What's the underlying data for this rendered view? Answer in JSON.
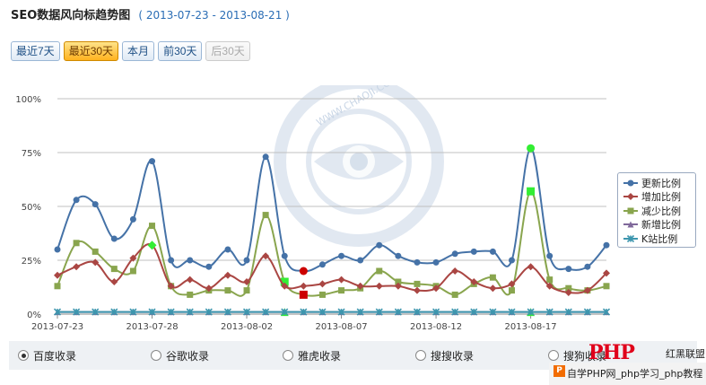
{
  "header": {
    "title": "SEO数据风向标趋势图",
    "date_range": "( 2013-07-23 - 2013-08-21 )"
  },
  "buttons": [
    {
      "label": "最近7天",
      "state": "normal"
    },
    {
      "label": "最近30天",
      "state": "active"
    },
    {
      "label": "本月",
      "state": "normal"
    },
    {
      "label": "前30天",
      "state": "normal"
    },
    {
      "label": "后30天",
      "state": "disabled"
    }
  ],
  "chart_data": {
    "type": "line",
    "ylim": [
      0,
      100
    ],
    "yticks": [
      0,
      25,
      50,
      75,
      100
    ],
    "ytick_labels": [
      "0%",
      "25%",
      "50%",
      "75%",
      "100%"
    ],
    "x": [
      "2013-07-23",
      "2013-07-24",
      "2013-07-25",
      "2013-07-26",
      "2013-07-27",
      "2013-07-28",
      "2013-07-29",
      "2013-07-30",
      "2013-07-31",
      "2013-08-01",
      "2013-08-02",
      "2013-08-03",
      "2013-08-04",
      "2013-08-05",
      "2013-08-06",
      "2013-08-07",
      "2013-08-08",
      "2013-08-09",
      "2013-08-10",
      "2013-08-11",
      "2013-08-12",
      "2013-08-13",
      "2013-08-14",
      "2013-08-15",
      "2013-08-16",
      "2013-08-17",
      "2013-08-18",
      "2013-08-19",
      "2013-08-20",
      "2013-08-21"
    ],
    "xtick_labels": [
      "2013-07-23",
      "2013-07-28",
      "2013-08-02",
      "2013-08-07",
      "2013-08-12",
      "2013-08-17"
    ],
    "grid": true,
    "legend_position": "right",
    "series": [
      {
        "name": "更新比例",
        "color": "#4572a7",
        "marker": "circle",
        "values": [
          30,
          53,
          51,
          35,
          44,
          71,
          25,
          25,
          22,
          30,
          25,
          73,
          27,
          20,
          23,
          27,
          25,
          32,
          27,
          24,
          24,
          28,
          29,
          29,
          25,
          77,
          27,
          21,
          22,
          32
        ]
      },
      {
        "name": "增加比例",
        "color": "#aa4643",
        "marker": "diamond",
        "values": [
          18,
          22,
          24,
          15,
          26,
          32,
          13,
          16,
          12,
          18,
          15,
          27,
          13,
          13,
          14,
          16,
          13,
          13,
          13,
          11,
          12,
          20,
          15,
          12,
          14,
          22,
          13,
          10,
          11,
          19
        ]
      },
      {
        "name": "减少比例",
        "color": "#89a54e",
        "marker": "square",
        "values": [
          13,
          33,
          29,
          21,
          20,
          41,
          13,
          9,
          11,
          11,
          11,
          46,
          15,
          9,
          9,
          11,
          12,
          20,
          15,
          14,
          13,
          9,
          14,
          17,
          11,
          57,
          16,
          12,
          11,
          13
        ]
      },
      {
        "name": "新增比例",
        "color": "#80699b",
        "marker": "triangle",
        "values": [
          1,
          1,
          1,
          1,
          1,
          1,
          1,
          1,
          1,
          1,
          1,
          1,
          1,
          1,
          1,
          1,
          1,
          1,
          1,
          1,
          1,
          1,
          1,
          1,
          1,
          1,
          1,
          1,
          1,
          1
        ]
      },
      {
        "name": "K站比例",
        "color": "#3d96ae",
        "marker": "cross",
        "values": [
          1,
          1,
          1,
          1,
          1,
          1,
          1,
          1,
          1,
          1,
          1,
          1,
          1,
          1,
          1,
          1,
          1,
          1,
          1,
          1,
          1,
          1,
          1,
          1,
          1,
          1,
          1,
          1,
          1,
          1
        ]
      }
    ],
    "highlights": [
      {
        "series": 0,
        "index": 13,
        "color": "#cc0000"
      },
      {
        "series": 0,
        "index": 25,
        "color": "#33ee33"
      },
      {
        "series": 1,
        "index": 5,
        "color": "#33ee33"
      },
      {
        "series": 2,
        "index": 13,
        "color": "#cc0000"
      },
      {
        "series": 2,
        "index": 25,
        "color": "#33ee33"
      },
      {
        "series": 2,
        "index": 12,
        "color": "#33ee33"
      },
      {
        "series": 3,
        "index": 12,
        "color": "#33ee33"
      },
      {
        "series": 3,
        "index": 25,
        "color": "#33ee33"
      }
    ]
  },
  "watermark": {
    "text": "WWW.CHAOJI.COM"
  },
  "radios": [
    {
      "label": "百度收录",
      "checked": true
    },
    {
      "label": "谷歌收录",
      "checked": false
    },
    {
      "label": "雅虎收录",
      "checked": false
    },
    {
      "label": "搜搜收录",
      "checked": false
    },
    {
      "label": "搜狗收录",
      "checked": false
    }
  ],
  "branding": {
    "logo": "PHP",
    "site": "红黑联盟",
    "caption": "自学PHP网_php学习_php教程"
  }
}
